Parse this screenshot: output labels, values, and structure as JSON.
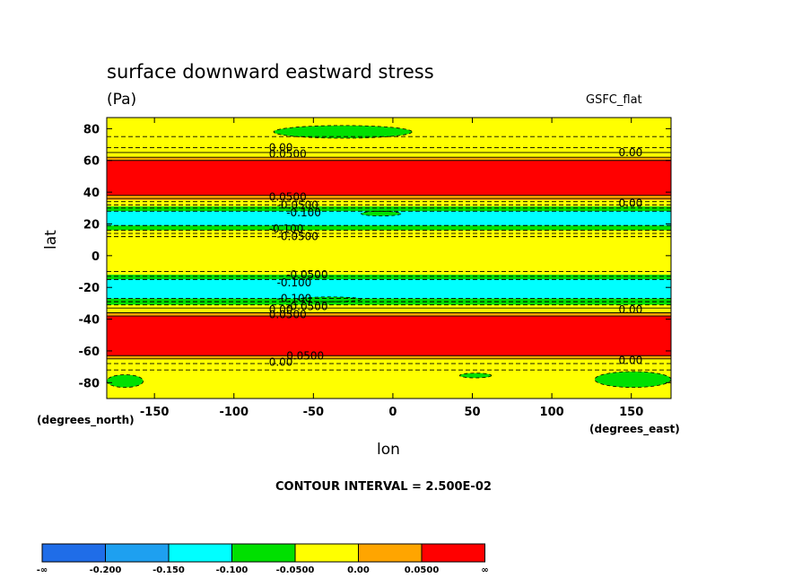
{
  "chart_data": {
    "type": "heatmap",
    "title": "surface downward eastward stress",
    "units": "(Pa)",
    "model": "GSFC_flat",
    "xlabel": "lon",
    "x_units": "(degrees_east)",
    "ylabel": "lat",
    "y_units": "(degrees_north)",
    "xlim": [
      -180,
      175
    ],
    "ylim": [
      -90,
      87
    ],
    "x_ticks": [
      "-150",
      "-100",
      "-50",
      "0",
      "50",
      "100",
      "150"
    ],
    "y_ticks": [
      "80",
      "60",
      "40",
      "20",
      "0",
      "-20",
      "-40",
      "-60",
      "-80"
    ],
    "contour_interval_text": "CONTOUR INTERVAL = 2.500E-02",
    "colorbar": {
      "labels": [
        "-∞",
        "-0.200",
        "-0.150",
        "-0.100",
        "-0.0500",
        "0.00",
        "0.0500",
        "∞"
      ],
      "colors": [
        "#1f6de8",
        "#1ea0f0",
        "#00ffff",
        "#00e000",
        "#ffff00",
        "#ffa500",
        "#ff0000"
      ]
    },
    "bands": [
      {
        "lat": [
          75,
          87
        ],
        "color": "#ffff00"
      },
      {
        "lat": [
          62,
          75
        ],
        "color": "#ffff00"
      },
      {
        "lat": [
          60,
          62
        ],
        "color": "#ffa500"
      },
      {
        "lat": [
          38,
          60
        ],
        "color": "#ff0000"
      },
      {
        "lat": [
          35,
          38
        ],
        "color": "#ffa500"
      },
      {
        "lat": [
          31,
          35
        ],
        "color": "#ffff00"
      },
      {
        "lat": [
          28,
          31
        ],
        "color": "#00e000"
      },
      {
        "lat": [
          19,
          28
        ],
        "color": "#00ffff"
      },
      {
        "lat": [
          16,
          19
        ],
        "color": "#00e000"
      },
      {
        "lat": [
          -12,
          16
        ],
        "color": "#ffff00"
      },
      {
        "lat": [
          -15,
          -12
        ],
        "color": "#00e000"
      },
      {
        "lat": [
          -27,
          -15
        ],
        "color": "#00ffff"
      },
      {
        "lat": [
          -31,
          -27
        ],
        "color": "#00e000"
      },
      {
        "lat": [
          -36,
          -31
        ],
        "color": "#ffff00"
      },
      {
        "lat": [
          -38,
          -36
        ],
        "color": "#ffa500"
      },
      {
        "lat": [
          -63,
          -38
        ],
        "color": "#ff0000"
      },
      {
        "lat": [
          -65,
          -63
        ],
        "color": "#ffa500"
      },
      {
        "lat": [
          -90,
          -65
        ],
        "color": "#ffff00"
      }
    ],
    "patches": [
      {
        "lon": [
          -75,
          12
        ],
        "lat": [
          74,
          82
        ],
        "color": "#00e000"
      },
      {
        "lon": [
          -180,
          -157
        ],
        "lat": [
          -83,
          -75
        ],
        "color": "#00e000"
      },
      {
        "lon": [
          42,
          62
        ],
        "lat": [
          -77,
          -74
        ],
        "color": "#00e000"
      },
      {
        "lon": [
          127,
          175
        ],
        "lat": [
          -83,
          -73
        ],
        "color": "#00e000"
      },
      {
        "lon": [
          -20,
          5
        ],
        "lat": [
          25,
          28
        ],
        "color": "#00e000"
      },
      {
        "lon": [
          -60,
          -20
        ],
        "lat": [
          -29,
          -26
        ],
        "color": "#00e000"
      }
    ],
    "contour_lines": [
      {
        "lat": 75,
        "style": "dashed"
      },
      {
        "lat": 68,
        "style": "dashed"
      },
      {
        "lat": 65,
        "style": "solid"
      },
      {
        "lat": 62,
        "style": "solid"
      },
      {
        "lat": 60,
        "style": "solid"
      },
      {
        "lat": 38,
        "style": "solid"
      },
      {
        "lat": 36,
        "style": "solid"
      },
      {
        "lat": 34,
        "style": "dashed"
      },
      {
        "lat": 32,
        "style": "dashed"
      },
      {
        "lat": 30,
        "style": "dashed"
      },
      {
        "lat": 28,
        "style": "dashed"
      },
      {
        "lat": 19,
        "style": "dashed"
      },
      {
        "lat": 16,
        "style": "dashed"
      },
      {
        "lat": 14,
        "style": "dashed"
      },
      {
        "lat": 12,
        "style": "dashed"
      },
      {
        "lat": -10,
        "style": "dashed"
      },
      {
        "lat": -13,
        "style": "dashed"
      },
      {
        "lat": -15,
        "style": "dashed"
      },
      {
        "lat": -27,
        "style": "dashed"
      },
      {
        "lat": -29,
        "style": "dashed"
      },
      {
        "lat": -31,
        "style": "dashed"
      },
      {
        "lat": -33,
        "style": "solid"
      },
      {
        "lat": -36,
        "style": "solid"
      },
      {
        "lat": -38,
        "style": "solid"
      },
      {
        "lat": -63,
        "style": "solid"
      },
      {
        "lat": -65,
        "style": "solid"
      },
      {
        "lat": -68,
        "style": "dashed"
      },
      {
        "lat": -72,
        "style": "dashed"
      }
    ],
    "contour_labels": [
      {
        "text": "0.00",
        "lon": -78,
        "lat": 68
      },
      {
        "text": "0.0500",
        "lon": -78,
        "lat": 64
      },
      {
        "text": "0.00",
        "lon": 142,
        "lat": 65
      },
      {
        "text": "0.0500",
        "lon": -78,
        "lat": 37
      },
      {
        "text": "-0.0500",
        "lon": -73,
        "lat": 32
      },
      {
        "text": "-0.100",
        "lon": -67,
        "lat": 27
      },
      {
        "text": "0.00",
        "lon": 142,
        "lat": 33
      },
      {
        "text": "-0.100",
        "lon": -78,
        "lat": 17
      },
      {
        "text": "-0.0500",
        "lon": -73,
        "lat": 12
      },
      {
        "text": "-0.0500",
        "lon": -67,
        "lat": -12
      },
      {
        "text": "-0.100",
        "lon": -73,
        "lat": -17
      },
      {
        "text": "-0.100",
        "lon": -73,
        "lat": -27
      },
      {
        "text": "-0.0500",
        "lon": -67,
        "lat": -32
      },
      {
        "text": "0.00",
        "lon": -78,
        "lat": -34
      },
      {
        "text": "0.0500",
        "lon": -78,
        "lat": -37
      },
      {
        "text": "0.00",
        "lon": 142,
        "lat": -34
      },
      {
        "text": "0.0500",
        "lon": -67,
        "lat": -63
      },
      {
        "text": "0.00",
        "lon": -78,
        "lat": -67
      },
      {
        "text": "0.00",
        "lon": 142,
        "lat": -66
      }
    ]
  }
}
